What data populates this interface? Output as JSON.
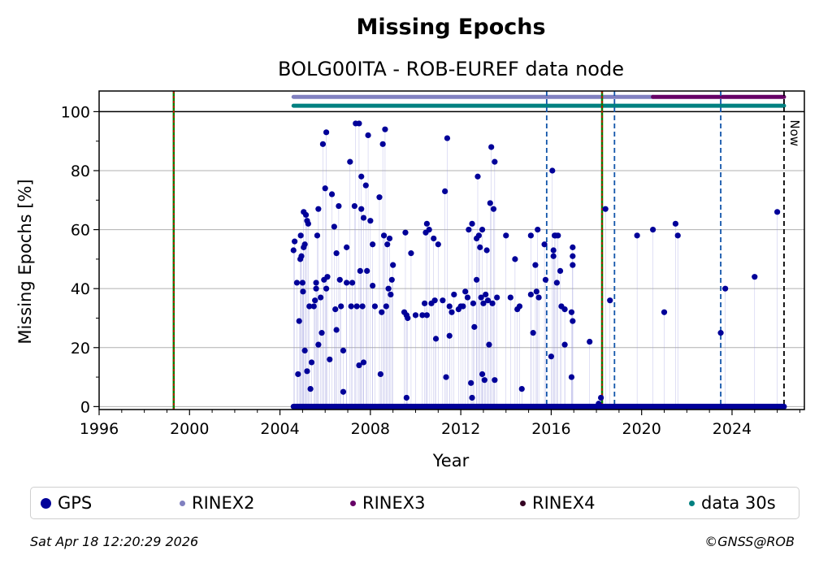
{
  "chart_data": {
    "type": "scatter",
    "title": "Missing Epochs",
    "subtitle": "BOLG00ITA - ROB-EUREF data node",
    "xlabel": "Year",
    "ylabel": "Missing Epochs [%]",
    "xlim": [
      1996,
      2027.2
    ],
    "ylim": [
      -1,
      107
    ],
    "grid": "horizontal",
    "x_ticks": [
      1996,
      2000,
      2004,
      2008,
      2012,
      2016,
      2020,
      2024
    ],
    "y_ticks": [
      0,
      20,
      40,
      60,
      80,
      100
    ],
    "now_label": "Now",
    "now_x": 2026.3,
    "vlines_red_green": [
      1999.3,
      2018.25
    ],
    "vlines_blue_dashed": [
      2015.8,
      2018.8,
      2023.5
    ],
    "availability_bars": [
      {
        "name": "RINEX2",
        "color": "#8080c0",
        "y": 105,
        "start": 2004.6,
        "end": 2020.5
      },
      {
        "name": "RINEX3",
        "color": "#660066",
        "y": 105,
        "start": 2020.5,
        "end": 2026.3
      },
      {
        "name": "data 30s",
        "color": "#008080",
        "y": 102,
        "start": 2004.6,
        "end": 2026.3
      }
    ],
    "series": [
      {
        "name": "GPS",
        "color": "#000099",
        "baseline": {
          "y": 0,
          "start": 2004.6,
          "end": 2026.3
        },
        "points": [
          [
            2004.6,
            53
          ],
          [
            2004.65,
            56
          ],
          [
            2004.75,
            42
          ],
          [
            2004.8,
            11
          ],
          [
            2004.85,
            29
          ],
          [
            2004.9,
            50
          ],
          [
            2004.92,
            58
          ],
          [
            2004.95,
            51
          ],
          [
            2005.0,
            42
          ],
          [
            2005.02,
            39
          ],
          [
            2005.05,
            54
          ],
          [
            2005.05,
            66
          ],
          [
            2005.1,
            55
          ],
          [
            2005.1,
            19
          ],
          [
            2005.15,
            65
          ],
          [
            2005.2,
            63
          ],
          [
            2005.25,
            62
          ],
          [
            2005.2,
            12
          ],
          [
            2005.3,
            34
          ],
          [
            2005.35,
            6
          ],
          [
            2005.4,
            15
          ],
          [
            2005.5,
            34
          ],
          [
            2005.55,
            36
          ],
          [
            2005.6,
            40
          ],
          [
            2005.6,
            42
          ],
          [
            2005.65,
            58
          ],
          [
            2005.7,
            67
          ],
          [
            2005.7,
            21
          ],
          [
            2005.8,
            37
          ],
          [
            2005.85,
            25
          ],
          [
            2005.9,
            89
          ],
          [
            2005.95,
            43
          ],
          [
            2006.0,
            74
          ],
          [
            2006.05,
            40
          ],
          [
            2006.05,
            93
          ],
          [
            2006.1,
            44
          ],
          [
            2006.2,
            16
          ],
          [
            2006.3,
            72
          ],
          [
            2006.4,
            61
          ],
          [
            2006.45,
            33
          ],
          [
            2006.5,
            26
          ],
          [
            2006.5,
            52
          ],
          [
            2006.6,
            68
          ],
          [
            2006.65,
            43
          ],
          [
            2006.7,
            34
          ],
          [
            2006.8,
            5
          ],
          [
            2006.8,
            19
          ],
          [
            2006.95,
            42
          ],
          [
            2006.95,
            54
          ],
          [
            2007.1,
            83
          ],
          [
            2007.15,
            34
          ],
          [
            2007.2,
            42
          ],
          [
            2007.3,
            68
          ],
          [
            2007.35,
            96
          ],
          [
            2007.4,
            34
          ],
          [
            2007.5,
            96
          ],
          [
            2007.5,
            14
          ],
          [
            2007.55,
            46
          ],
          [
            2007.6,
            67
          ],
          [
            2007.6,
            78
          ],
          [
            2007.65,
            34
          ],
          [
            2007.7,
            64
          ],
          [
            2007.7,
            15
          ],
          [
            2007.8,
            75
          ],
          [
            2007.85,
            46
          ],
          [
            2007.9,
            92
          ],
          [
            2008.0,
            63
          ],
          [
            2008.1,
            55
          ],
          [
            2008.1,
            41
          ],
          [
            2008.2,
            34
          ],
          [
            2008.4,
            71
          ],
          [
            2008.45,
            11
          ],
          [
            2008.5,
            32
          ],
          [
            2008.55,
            89
          ],
          [
            2008.6,
            58
          ],
          [
            2008.65,
            94
          ],
          [
            2008.7,
            34
          ],
          [
            2008.75,
            55
          ],
          [
            2008.8,
            40
          ],
          [
            2008.85,
            57
          ],
          [
            2008.9,
            38
          ],
          [
            2008.95,
            43
          ],
          [
            2009.0,
            48
          ],
          [
            2009.5,
            32
          ],
          [
            2009.55,
            59
          ],
          [
            2009.6,
            31
          ],
          [
            2009.65,
            30
          ],
          [
            2009.6,
            3
          ],
          [
            2009.8,
            52
          ],
          [
            2010.0,
            31
          ],
          [
            2010.3,
            31
          ],
          [
            2010.4,
            35
          ],
          [
            2010.45,
            59
          ],
          [
            2010.5,
            62
          ],
          [
            2010.5,
            31
          ],
          [
            2010.6,
            60
          ],
          [
            2010.7,
            35
          ],
          [
            2010.8,
            57
          ],
          [
            2010.85,
            36
          ],
          [
            2010.9,
            23
          ],
          [
            2011.0,
            55
          ],
          [
            2011.2,
            36
          ],
          [
            2011.3,
            73
          ],
          [
            2011.35,
            10
          ],
          [
            2011.4,
            91
          ],
          [
            2011.5,
            34
          ],
          [
            2011.5,
            24
          ],
          [
            2011.6,
            32
          ],
          [
            2011.7,
            38
          ],
          [
            2011.9,
            33
          ],
          [
            2012.0,
            34
          ],
          [
            2012.1,
            34
          ],
          [
            2012.2,
            39
          ],
          [
            2012.3,
            37
          ],
          [
            2012.35,
            60
          ],
          [
            2012.45,
            8
          ],
          [
            2012.5,
            62
          ],
          [
            2012.5,
            3
          ],
          [
            2012.55,
            35
          ],
          [
            2012.6,
            27
          ],
          [
            2012.7,
            57
          ],
          [
            2012.7,
            43
          ],
          [
            2012.75,
            78
          ],
          [
            2012.8,
            58
          ],
          [
            2012.85,
            54
          ],
          [
            2012.9,
            37
          ],
          [
            2012.95,
            60
          ],
          [
            2012.95,
            11
          ],
          [
            2013.0,
            35
          ],
          [
            2013.05,
            9
          ],
          [
            2013.1,
            38
          ],
          [
            2013.15,
            53
          ],
          [
            2013.2,
            36
          ],
          [
            2013.25,
            21
          ],
          [
            2013.3,
            69
          ],
          [
            2013.35,
            88
          ],
          [
            2013.4,
            35
          ],
          [
            2013.45,
            67
          ],
          [
            2013.5,
            9
          ],
          [
            2013.5,
            83
          ],
          [
            2013.6,
            37
          ],
          [
            2014.0,
            58
          ],
          [
            2014.2,
            37
          ],
          [
            2014.4,
            50
          ],
          [
            2014.5,
            33
          ],
          [
            2014.6,
            34
          ],
          [
            2014.7,
            6
          ],
          [
            2015.1,
            58
          ],
          [
            2015.1,
            38
          ],
          [
            2015.2,
            25
          ],
          [
            2015.3,
            48
          ],
          [
            2015.35,
            39
          ],
          [
            2015.4,
            60
          ],
          [
            2015.45,
            37
          ],
          [
            2015.7,
            55
          ],
          [
            2015.75,
            43
          ],
          [
            2016.0,
            17
          ],
          [
            2016.05,
            80
          ],
          [
            2016.1,
            51
          ],
          [
            2016.1,
            53
          ],
          [
            2016.15,
            58
          ],
          [
            2016.2,
            58
          ],
          [
            2016.25,
            42
          ],
          [
            2016.3,
            58
          ],
          [
            2016.4,
            46
          ],
          [
            2016.45,
            34
          ],
          [
            2016.6,
            21
          ],
          [
            2016.6,
            33
          ],
          [
            2016.9,
            10
          ],
          [
            2016.95,
            51
          ],
          [
            2016.95,
            54
          ],
          [
            2016.95,
            48
          ],
          [
            2016.95,
            29
          ],
          [
            2016.9,
            32
          ],
          [
            2017.7,
            22
          ],
          [
            2018.1,
            1
          ],
          [
            2018.2,
            3
          ],
          [
            2018.4,
            67
          ],
          [
            2018.6,
            36
          ],
          [
            2019.8,
            58
          ],
          [
            2020.5,
            60
          ],
          [
            2021.0,
            32
          ],
          [
            2021.5,
            62
          ],
          [
            2021.6,
            58
          ],
          [
            2023.5,
            25
          ],
          [
            2023.7,
            40
          ],
          [
            2025.0,
            44
          ],
          [
            2026.0,
            66
          ]
        ]
      }
    ],
    "legend": [
      {
        "name": "GPS",
        "color": "#000099"
      },
      {
        "name": "RINEX2",
        "color": "#8080c0"
      },
      {
        "name": "RINEX3",
        "color": "#660066"
      },
      {
        "name": "RINEX4",
        "color": "#330022"
      },
      {
        "name": "data 30s",
        "color": "#008080"
      }
    ]
  },
  "footer": {
    "timestamp": "Sat Apr 18 12:20:29 2026",
    "copyright": "©GNSS@ROB"
  }
}
